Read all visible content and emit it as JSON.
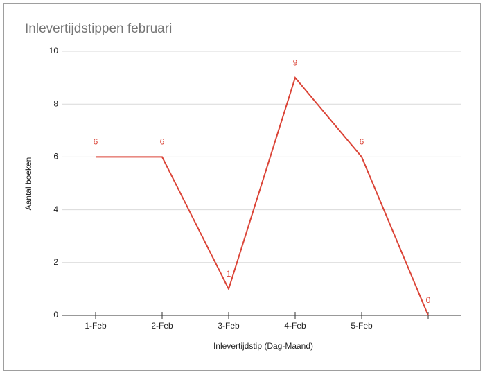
{
  "chart_data": {
    "type": "line",
    "title": "Inlevertijdstippen februari",
    "x_label": "Inlevertijdstip (Dag-Maand)",
    "y_label": "Aantal boeken",
    "categories": [
      "1-Feb",
      "2-Feb",
      "3-Feb",
      "4-Feb",
      "5-Feb",
      null
    ],
    "values": [
      6,
      6,
      1,
      9,
      6,
      0
    ],
    "color": "#db4437",
    "ylim": [
      0,
      10
    ],
    "yticks": [
      0,
      2,
      4,
      6,
      8,
      10
    ],
    "grid": true,
    "data_labels": true
  }
}
